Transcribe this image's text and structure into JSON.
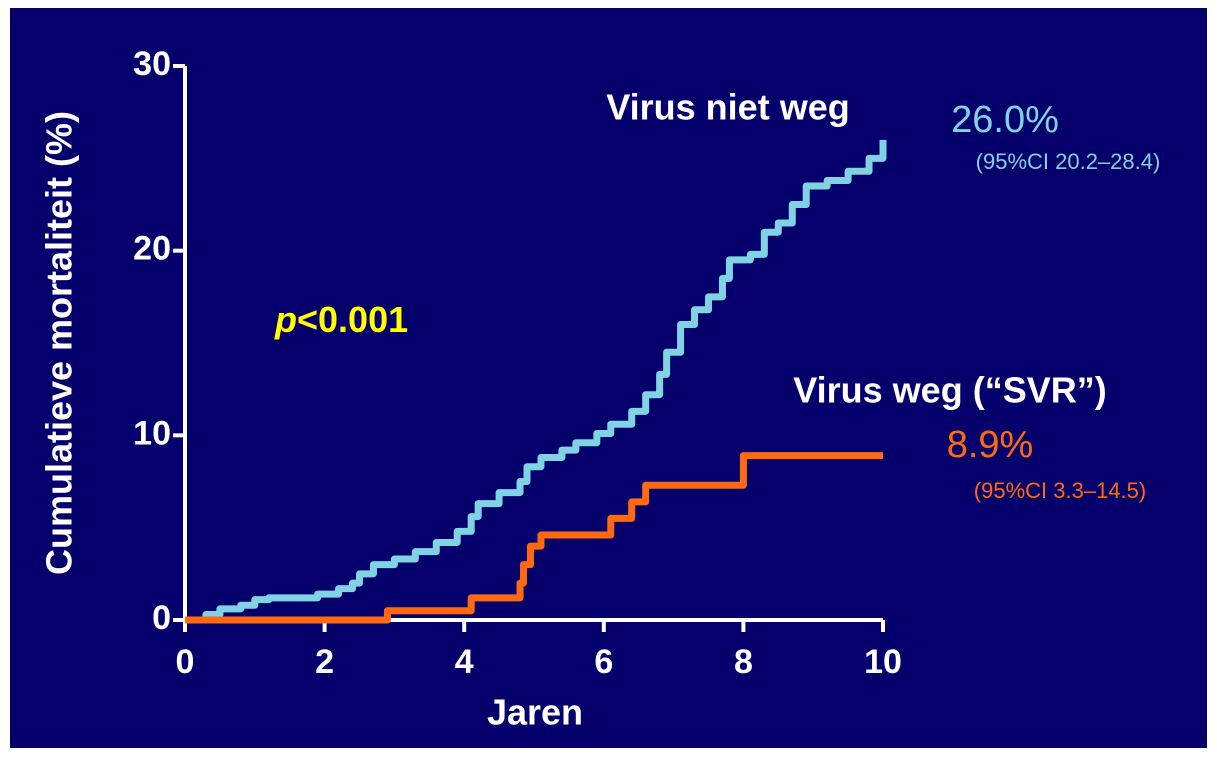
{
  "chart_data": {
    "type": "line",
    "step": true,
    "xlabel": "Jaren",
    "ylabel": "Cumulatieve mortaliteit (%)",
    "xlim": [
      0,
      10
    ],
    "xticks": [
      0,
      2,
      4,
      6,
      8,
      10
    ],
    "ylim": [
      0,
      30
    ],
    "yticks": [
      0,
      10,
      20,
      30
    ],
    "series": [
      {
        "name": "Virus niet weg",
        "color": "#7fd3e3",
        "end_label": "26.0%",
        "ci_label": "(95%CI 20.2–28.4)",
        "x": [
          0,
          0.3,
          0.5,
          0.8,
          1.0,
          1.2,
          1.9,
          2.2,
          2.4,
          2.5,
          2.7,
          3.0,
          3.3,
          3.6,
          3.9,
          4.1,
          4.2,
          4.5,
          4.8,
          4.9,
          5.1,
          5.4,
          5.6,
          5.9,
          6.1,
          6.4,
          6.6,
          6.8,
          6.9,
          7.1,
          7.3,
          7.5,
          7.7,
          7.8,
          8.1,
          8.3,
          8.5,
          8.7,
          8.9,
          9.2,
          9.5,
          9.8,
          10
        ],
        "values": [
          0,
          0.3,
          0.6,
          0.8,
          1.1,
          1.2,
          1.4,
          1.7,
          2.0,
          2.5,
          3.0,
          3.3,
          3.7,
          4.2,
          4.8,
          5.6,
          6.3,
          6.9,
          7.5,
          8.3,
          8.8,
          9.2,
          9.6,
          10.1,
          10.6,
          11.3,
          12.2,
          13.3,
          14.5,
          16.0,
          16.8,
          17.5,
          18.5,
          19.5,
          19.8,
          21.0,
          21.5,
          22.5,
          23.5,
          23.8,
          24.3,
          25.0,
          26.0
        ]
      },
      {
        "name": "Virus weg (“SVR”)",
        "color": "#ff6a10",
        "end_label": "8.9%",
        "ci_label": "(95%CI 3.3–14.5)",
        "x": [
          0,
          2.9,
          4.1,
          4.8,
          4.85,
          4.95,
          5.1,
          6.1,
          6.4,
          6.6,
          8.0,
          10
        ],
        "values": [
          0,
          0.5,
          1.2,
          2.0,
          3.0,
          4.0,
          4.6,
          5.5,
          6.4,
          7.3,
          8.9,
          8.9
        ]
      }
    ],
    "p_label": {
      "italic": "p",
      "text": "<0.001",
      "color": "#ffff00"
    }
  }
}
